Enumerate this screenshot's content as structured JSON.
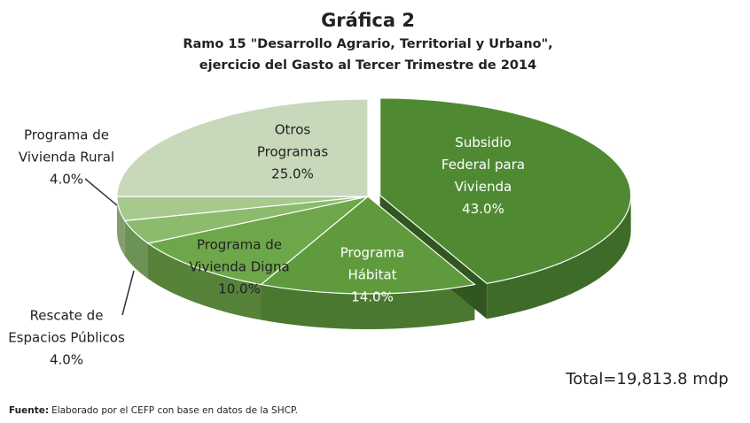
{
  "chart_data": {
    "type": "pie3d",
    "title": "Gráfica 2",
    "subtitle": [
      "Ramo 15 \"Desarrollo Agrario, Territorial y Urbano\",",
      "ejercicio del Gasto al Tercer Trimestre de 2014"
    ],
    "categories": [
      [
        "Subsidio",
        "Federal para",
        "Vivienda"
      ],
      [
        "Programa",
        "Hábitat"
      ],
      [
        "Programa de",
        "Vivienda Digna"
      ],
      [
        "Rescate de",
        "Espacios Públicos"
      ],
      [
        "Programa de",
        "Vivienda Rural"
      ],
      [
        "Otros",
        "Programas"
      ]
    ],
    "values": [
      43,
      14,
      10,
      4,
      4,
      25
    ],
    "value_labels": [
      "43.0%",
      "14.0%",
      "10.0%",
      "4.0%",
      "4.0%",
      "25.0%"
    ],
    "colors": [
      "#4f8a33",
      "#5f9a3d",
      "#6ea74a",
      "#8cbb6d",
      "#a8c98e",
      "#c8d8ba"
    ],
    "annotation": "Total=19,813.8 mdp",
    "source": {
      "label": "Fuente:",
      "text": "Elaborado por el CEFP con base en datos de la SHCP."
    }
  }
}
